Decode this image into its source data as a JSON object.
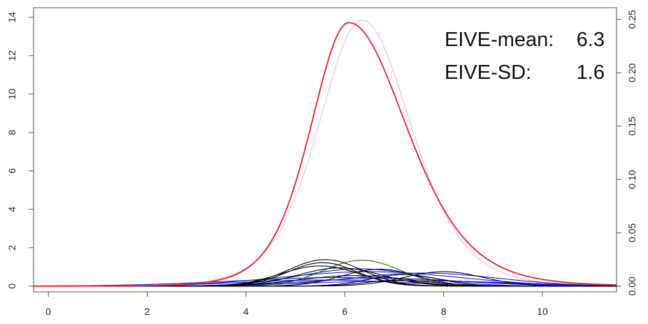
{
  "chart_data": {
    "type": "line",
    "title": "",
    "xlabel": "",
    "ylabel": "",
    "xlim": [
      -0.3,
      11.5
    ],
    "ylim_left": [
      -0.3,
      14.5
    ],
    "ylim_right": [
      -0.0054,
      0.261
    ],
    "x_ticks": [
      0,
      2,
      4,
      6,
      8,
      10
    ],
    "y_left_ticks": [
      0,
      2,
      4,
      6,
      8,
      10,
      12,
      14
    ],
    "y_right_ticks": [
      "0.00",
      "0.05",
      "0.10",
      "0.15",
      "0.20",
      "0.25"
    ],
    "grid": false,
    "legend": "none",
    "annotations": [
      {
        "label": "EIVE-mean:",
        "value": "6.3"
      },
      {
        "label": "EIVE-SD:",
        "value": "1.6"
      }
    ],
    "series": [
      {
        "color": "#e8202a",
        "axis": "left",
        "kind": "smoothed sum",
        "center": 6.08,
        "peak": 13.72,
        "left_width": 1.05,
        "right_width": 1.6
      },
      {
        "color": "#f2b8f2",
        "axis": "right",
        "kind": "fitted density",
        "center": 6.35,
        "peak": 0.2493,
        "left_width": 1.2,
        "right_width": 1.35
      },
      {
        "color": "#000000",
        "axis": "left",
        "center": 5.6,
        "peak": 1.38,
        "width": 0.75
      },
      {
        "color": "#000000",
        "axis": "left",
        "center": 5.55,
        "peak": 1.22,
        "width": 0.7
      },
      {
        "color": "#000000",
        "axis": "left",
        "center": 5.5,
        "peak": 1.05,
        "width": 0.8
      },
      {
        "color": "#000000",
        "axis": "left",
        "center": 5.9,
        "peak": 0.95,
        "width": 0.85
      },
      {
        "color": "#000000",
        "axis": "left",
        "center": 6.7,
        "peak": 0.88,
        "width": 0.75
      },
      {
        "color": "#000000",
        "axis": "left",
        "center": 7.2,
        "peak": 0.6,
        "width": 0.7
      },
      {
        "color": "#000000",
        "axis": "left",
        "center": 8.0,
        "peak": 0.75,
        "width": 0.8
      },
      {
        "color": "#000000",
        "axis": "left",
        "center": 6.2,
        "peak": 0.55,
        "width": 1.1
      },
      {
        "color": "#000000",
        "axis": "left",
        "center": 7.0,
        "peak": 0.3,
        "width": 0.6
      },
      {
        "color": "#1a6e1a",
        "axis": "left",
        "center": 6.35,
        "peak": 1.35,
        "width": 0.78
      },
      {
        "color": "#1d1ddc",
        "axis": "left",
        "center": 6.3,
        "peak": 0.9,
        "width": 1.2
      },
      {
        "color": "#1d1ddc",
        "axis": "left",
        "center": 6.5,
        "peak": 0.75,
        "width": 1.8
      },
      {
        "color": "#1d1ddc",
        "axis": "left",
        "center": 7.6,
        "peak": 0.68,
        "width": 1.5
      },
      {
        "color": "#1d1ddc",
        "axis": "left",
        "center": 6.0,
        "peak": 0.45,
        "width": 2.2
      },
      {
        "color": "#1d1ddc",
        "axis": "left",
        "center": 6.8,
        "peak": 0.4,
        "width": 1.6
      },
      {
        "color": "#1d1ddc",
        "axis": "left",
        "center": 5.5,
        "peak": 0.32,
        "width": 1.6
      },
      {
        "color": "#1d1ddc",
        "axis": "left",
        "center": 7.4,
        "peak": 0.28,
        "width": 2.0
      }
    ]
  }
}
